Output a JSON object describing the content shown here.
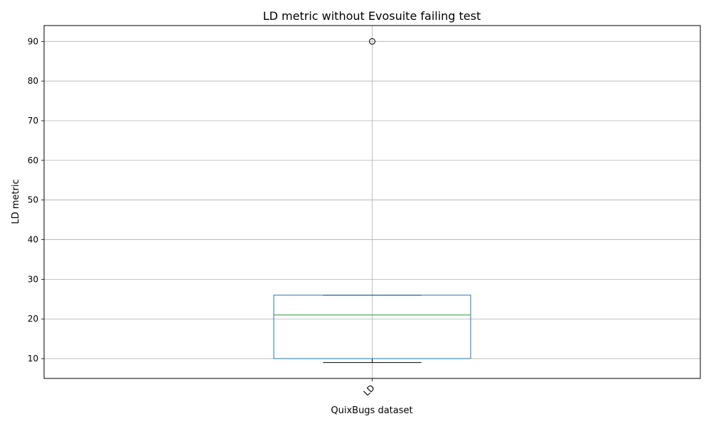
{
  "chart_data": {
    "type": "box",
    "title": "LD metric without Evosuite failing test",
    "xlabel": "QuixBugs dataset",
    "ylabel": "LD metric",
    "categories": [
      "LD"
    ],
    "boxes": [
      {
        "name": "LD",
        "whisker_low": 9,
        "q1": 10,
        "median": 21,
        "q3": 26,
        "whisker_high": 26,
        "outliers": [
          90
        ]
      }
    ],
    "ylim": [
      5,
      94
    ],
    "yticks": [
      10,
      20,
      30,
      40,
      50,
      60,
      70,
      80,
      90
    ],
    "grid": true,
    "legend": "none",
    "colors": {
      "box": "#1f77b4",
      "median": "#2ca02c",
      "whisker": "#000000",
      "cap": "#000000",
      "outlier": "#000000",
      "grid": "#b0b0b0",
      "axes": "#000000"
    }
  }
}
